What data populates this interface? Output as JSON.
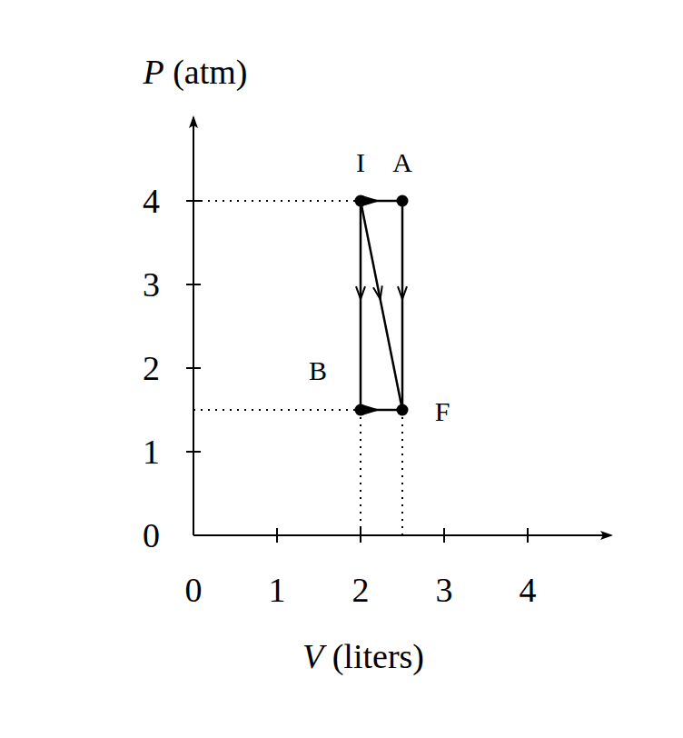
{
  "chart_data": {
    "type": "line",
    "x_label": "V (liters)",
    "y_label": "P (atm)",
    "xlim": [
      0,
      5
    ],
    "ylim": [
      0,
      5
    ],
    "xticks": [
      0,
      1,
      2,
      3,
      4
    ],
    "yticks": [
      0,
      1,
      2,
      3,
      4
    ],
    "color": "#000000",
    "points": [
      {
        "label": "I",
        "x": 2,
        "y": 4
      },
      {
        "label": "A",
        "x": 2.5,
        "y": 4
      },
      {
        "label": "B",
        "x": 2,
        "y": 1.5
      },
      {
        "label": "F",
        "x": 2.5,
        "y": 1.5
      }
    ],
    "series": [
      {
        "x": [
          2,
          2.5
        ],
        "values": [
          4,
          4
        ]
      },
      {
        "x": [
          2.5,
          2.5
        ],
        "values": [
          4,
          1.5
        ]
      },
      {
        "x": [
          2,
          2
        ],
        "values": [
          4,
          1.5
        ]
      },
      {
        "x": [
          2,
          2.5
        ],
        "values": [
          1.5,
          1.5
        ]
      },
      {
        "x": [
          2,
          2.5
        ],
        "values": [
          4,
          1.5
        ]
      }
    ]
  }
}
